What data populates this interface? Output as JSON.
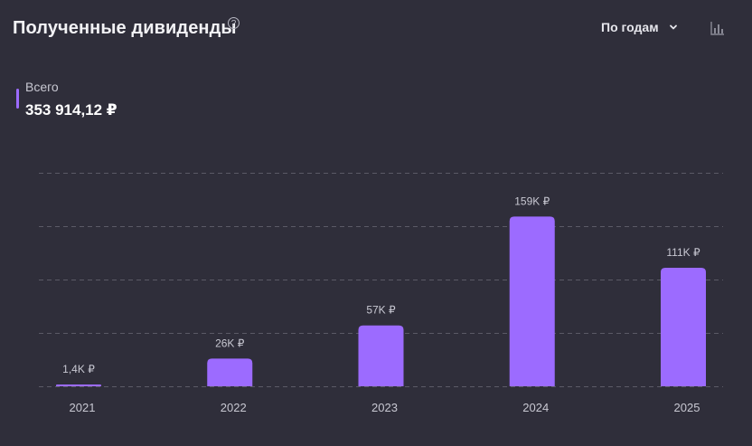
{
  "header": {
    "title": "Полученные дивиденды",
    "help_icon": "question-circle-icon",
    "period_select": {
      "label": "По годам",
      "icon": "chevron-down-icon"
    },
    "chart_type_icon": "bar-chart-icon"
  },
  "total": {
    "label": "Всего",
    "value": "353 914,12 ₽",
    "accent_color": "#9c6bff"
  },
  "colors": {
    "background": "#2f2e3a",
    "bar": "#9c6bff",
    "grid": "#5b5a66",
    "muted_text": "#c8c8d2"
  },
  "chart_data": {
    "type": "bar",
    "title": "",
    "xlabel": "",
    "ylabel": "",
    "categories": [
      "2021",
      "2022",
      "2023",
      "2024",
      "2025"
    ],
    "values": [
      1400,
      26000,
      57000,
      159000,
      111000
    ],
    "data_labels": [
      "1,4K ₽",
      "26K ₽",
      "57K ₽",
      "159K ₽",
      "111K ₽"
    ],
    "ylim": [
      0,
      200000
    ],
    "grid": true,
    "legend": "none"
  }
}
